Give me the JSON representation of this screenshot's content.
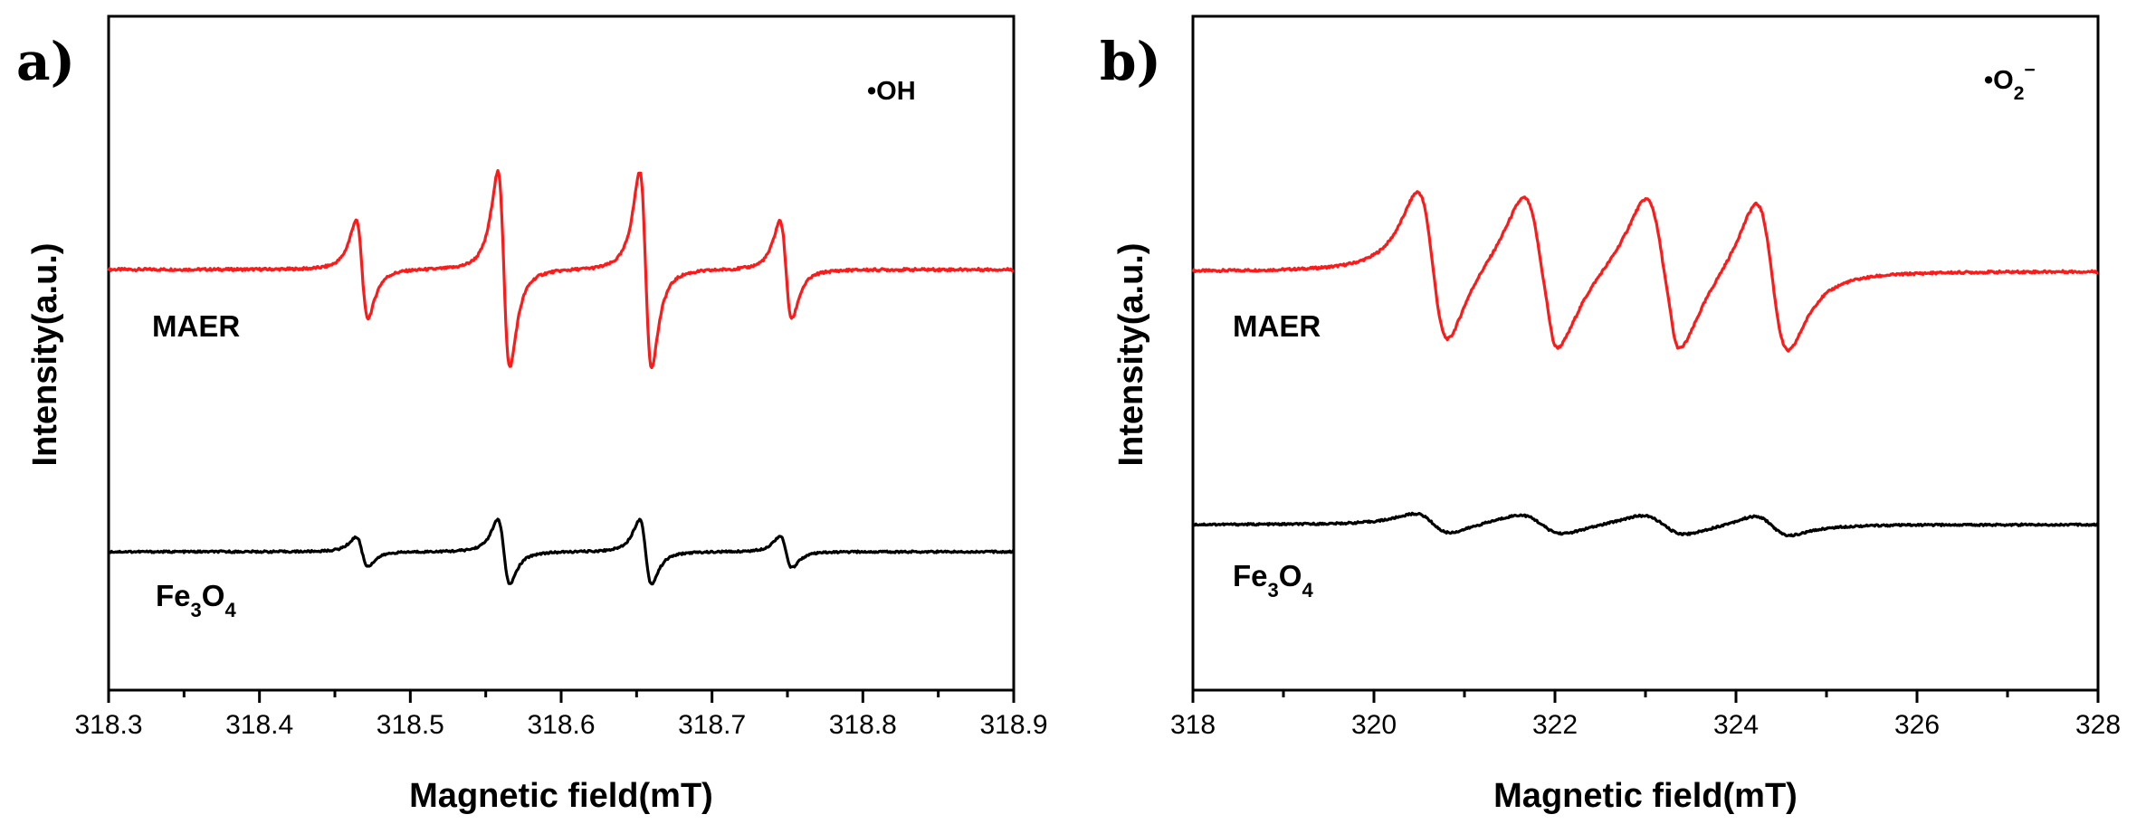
{
  "chart_data": [
    {
      "panel": "a)",
      "type": "line",
      "annotation": "•OH",
      "xlabel": "Magnetic field(mT)",
      "ylabel": "Intensity(a.u.)",
      "xlim": [
        318.3,
        318.9
      ],
      "x_ticks": [
        "318.3",
        "318.4",
        "318.5",
        "318.6",
        "318.7",
        "318.8",
        "318.9"
      ],
      "series": [
        {
          "name": "MAER",
          "label_main": "MAER",
          "label_sub": "",
          "label_tail": "",
          "color": "#ff1a1a",
          "baseline": 0.0,
          "signals": [
            {
              "x": 318.468,
              "amp": 0.6,
              "width": 0.004
            },
            {
              "x": 318.562,
              "amp": 1.2,
              "width": 0.004
            },
            {
              "x": 318.656,
              "amp": 1.2,
              "width": 0.004
            },
            {
              "x": 318.749,
              "amp": 0.6,
              "width": 0.004
            }
          ]
        },
        {
          "name": "Fe3O4",
          "label_main": "Fe",
          "label_sub": "3",
          "label_tail": "O",
          "label_sub2": "4",
          "color": "#000000",
          "baseline": -1.0,
          "signals": [
            {
              "x": 318.468,
              "amp": 0.25,
              "width": 0.004
            },
            {
              "x": 318.562,
              "amp": 0.55,
              "width": 0.004
            },
            {
              "x": 318.656,
              "amp": 0.55,
              "width": 0.004
            },
            {
              "x": 318.749,
              "amp": 0.27,
              "width": 0.004
            }
          ]
        }
      ]
    },
    {
      "panel": "b)",
      "type": "line",
      "annotation": "•O",
      "annotation_sub": "2",
      "annotation_sup": "−",
      "xlabel": "Magnetic field(mT)",
      "ylabel": "Intensity(a.u.)",
      "xlim": [
        318,
        328
      ],
      "x_ticks": [
        "318",
        "320",
        "322",
        "324",
        "326",
        "328"
      ],
      "series": [
        {
          "name": "MAER",
          "label_main": "MAER",
          "label_sub": "",
          "label_tail": "",
          "color": "#ff1a1a",
          "baseline": 0.0,
          "signals": [
            {
              "x": 320.65,
              "amp": 1.0,
              "width": 0.17
            },
            {
              "x": 321.85,
              "amp": 1.0,
              "width": 0.2
            },
            {
              "x": 323.2,
              "amp": 1.0,
              "width": 0.2
            },
            {
              "x": 324.4,
              "amp": 1.0,
              "width": 0.18
            },
            {
              "x": 321.95,
              "amp": 0.08,
              "width": 0.05
            },
            {
              "x": 323.3,
              "amp": 0.08,
              "width": 0.05
            }
          ]
        },
        {
          "name": "Fe3O4",
          "label_main": "Fe",
          "label_sub": "3",
          "label_tail": "O",
          "label_sub2": "4",
          "color": "#000000",
          "baseline": -1.0,
          "signals": [
            {
              "x": 320.65,
              "amp": 0.17,
              "width": 0.2
            },
            {
              "x": 321.85,
              "amp": 0.17,
              "width": 0.25
            },
            {
              "x": 323.2,
              "amp": 0.17,
              "width": 0.25
            },
            {
              "x": 324.4,
              "amp": 0.17,
              "width": 0.2
            }
          ]
        }
      ]
    }
  ]
}
